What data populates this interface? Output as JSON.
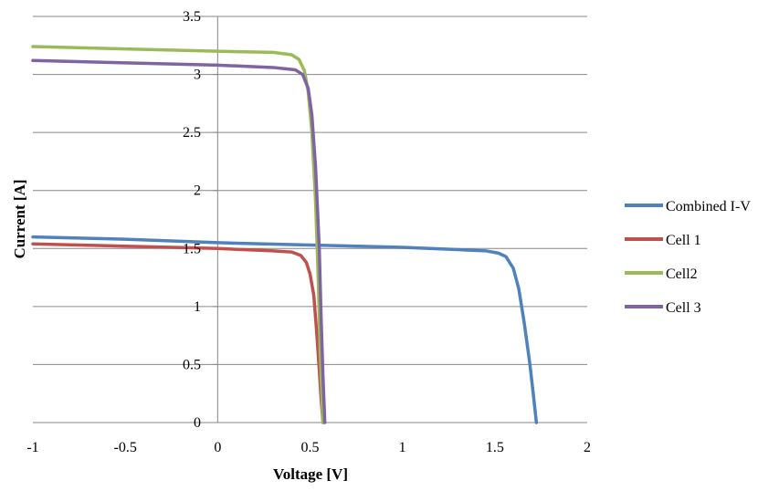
{
  "chart_data": {
    "type": "line",
    "title": "",
    "xlabel": "Voltage [V]",
    "ylabel": "Current [A]",
    "xlim": [
      -1,
      2
    ],
    "ylim": [
      0,
      3.5
    ],
    "x_ticks": [
      "-1",
      "-0.5",
      "0",
      "0.5",
      "1",
      "1.5",
      "2"
    ],
    "y_ticks": [
      "0",
      "0.5",
      "1",
      "1.5",
      "2",
      "2.5",
      "3",
      "3.5"
    ],
    "grid": "horizontal",
    "legend_position": "right",
    "series": [
      {
        "name": "Combined I-V",
        "color": "#4F81BD",
        "points": [
          [
            -1,
            1.6
          ],
          [
            -0.5,
            1.58
          ],
          [
            0,
            1.55
          ],
          [
            0.5,
            1.53
          ],
          [
            1.0,
            1.51
          ],
          [
            1.3,
            1.49
          ],
          [
            1.45,
            1.48
          ],
          [
            1.52,
            1.46
          ],
          [
            1.56,
            1.43
          ],
          [
            1.6,
            1.33
          ],
          [
            1.63,
            1.15
          ],
          [
            1.66,
            0.85
          ],
          [
            1.69,
            0.5
          ],
          [
            1.71,
            0.22
          ],
          [
            1.725,
            0
          ]
        ]
      },
      {
        "name": "Cell 1",
        "color": "#C0504D",
        "points": [
          [
            -1,
            1.54
          ],
          [
            -0.5,
            1.52
          ],
          [
            0,
            1.5
          ],
          [
            0.3,
            1.48
          ],
          [
            0.4,
            1.47
          ],
          [
            0.45,
            1.44
          ],
          [
            0.48,
            1.38
          ],
          [
            0.5,
            1.28
          ],
          [
            0.52,
            1.1
          ],
          [
            0.535,
            0.8
          ],
          [
            0.55,
            0.45
          ],
          [
            0.56,
            0.2
          ],
          [
            0.57,
            0
          ]
        ]
      },
      {
        "name": "Cell2",
        "color": "#9BBB59",
        "points": [
          [
            -1,
            3.24
          ],
          [
            -0.5,
            3.22
          ],
          [
            0,
            3.2
          ],
          [
            0.3,
            3.19
          ],
          [
            0.4,
            3.17
          ],
          [
            0.44,
            3.13
          ],
          [
            0.47,
            3.03
          ],
          [
            0.49,
            2.85
          ],
          [
            0.51,
            2.5
          ],
          [
            0.53,
            1.9
          ],
          [
            0.545,
            1.2
          ],
          [
            0.555,
            0.6
          ],
          [
            0.565,
            0.2
          ],
          [
            0.57,
            0
          ]
        ]
      },
      {
        "name": "Cell 3",
        "color": "#8064A2",
        "points": [
          [
            -1,
            3.12
          ],
          [
            -0.5,
            3.1
          ],
          [
            0,
            3.08
          ],
          [
            0.3,
            3.06
          ],
          [
            0.42,
            3.04
          ],
          [
            0.46,
            3.0
          ],
          [
            0.49,
            2.88
          ],
          [
            0.51,
            2.65
          ],
          [
            0.53,
            2.2
          ],
          [
            0.55,
            1.5
          ],
          [
            0.56,
            0.9
          ],
          [
            0.57,
            0.4
          ],
          [
            0.58,
            0
          ]
        ]
      }
    ]
  }
}
